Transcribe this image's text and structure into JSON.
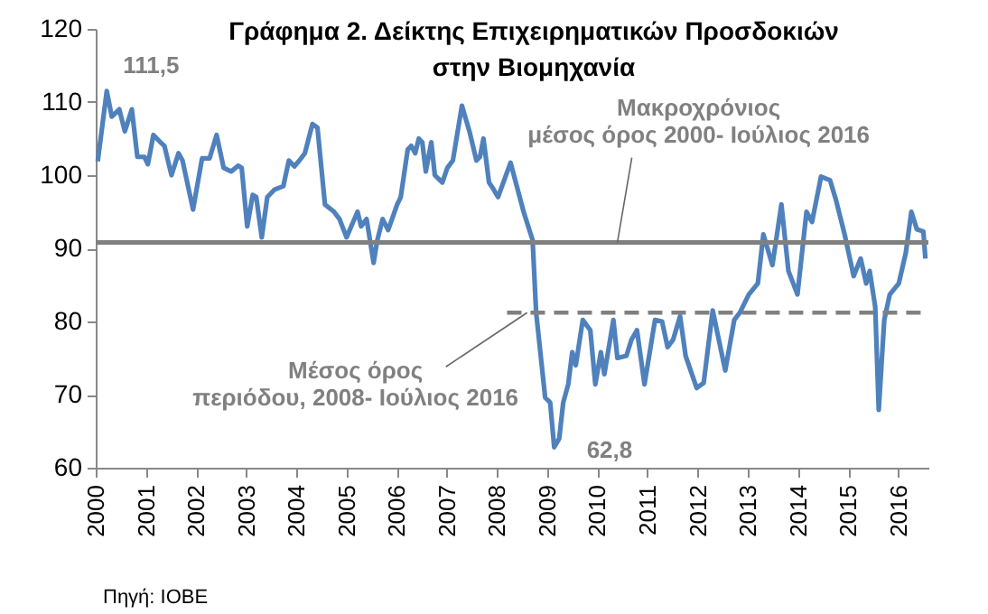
{
  "chart_data": {
    "type": "line",
    "title": "Γράφημα 2.  Δείκτης Επιχειρηματικών Προσδοκιών\nστην Βιομηχανία",
    "xlim": [
      2000,
      2016.6
    ],
    "xticks": [
      2000,
      2001,
      2002,
      2003,
      2004,
      2005,
      2006,
      2007,
      2008,
      2009,
      2010,
      2011,
      2012,
      2013,
      2014,
      2015,
      2016
    ],
    "ylim": [
      60,
      120
    ],
    "yticks": [
      60,
      70,
      80,
      90,
      100,
      110,
      120
    ],
    "grid": false,
    "marker": "none",
    "series": [
      {
        "color": "#4f81bd",
        "line_style": "solid",
        "x": [
          2000.04,
          2000.22,
          2000.32,
          2000.47,
          2000.58,
          2000.72,
          2000.83,
          2000.97,
          2001.04,
          2001.15,
          2001.29,
          2001.37,
          2001.51,
          2001.65,
          2001.73,
          2001.94,
          2002.12,
          2002.27,
          2002.41,
          2002.55,
          2002.7,
          2002.84,
          2002.91,
          2003.02,
          2003.13,
          2003.2,
          2003.31,
          2003.42,
          2003.56,
          2003.74,
          2003.85,
          2003.96,
          2004.06,
          2004.17,
          2004.32,
          2004.42,
          2004.57,
          2004.75,
          2004.86,
          2005.0,
          2005.22,
          2005.29,
          2005.4,
          2005.54,
          2005.61,
          2005.72,
          2005.83,
          2006.01,
          2006.08,
          2006.22,
          2006.29,
          2006.37,
          2006.44,
          2006.51,
          2006.58,
          2006.69,
          2006.76,
          2006.91,
          2007.01,
          2007.12,
          2007.3,
          2007.45,
          2007.59,
          2007.66,
          2007.73,
          2007.84,
          2007.91,
          2008.02,
          2008.27,
          2008.53,
          2008.71,
          2008.78,
          2008.96,
          2009.06,
          2009.14,
          2009.24,
          2009.32,
          2009.42,
          2009.5,
          2009.57,
          2009.71,
          2009.86,
          2009.96,
          2010.07,
          2010.14,
          2010.32,
          2010.4,
          2010.58,
          2010.68,
          2010.79,
          2010.94,
          2011.15,
          2011.29,
          2011.4,
          2011.51,
          2011.65,
          2011.76,
          2011.98,
          2012.12,
          2012.3,
          2012.55,
          2012.73,
          2012.84,
          2013.02,
          2013.2,
          2013.31,
          2013.49,
          2013.67,
          2013.81,
          2013.99,
          2014.17,
          2014.28,
          2014.46,
          2014.64,
          2014.75,
          2014.93,
          2015.11,
          2015.25,
          2015.36,
          2015.43,
          2015.54,
          2015.61,
          2015.72,
          2015.83,
          2016.01,
          2016.15,
          2016.26,
          2016.37,
          2016.5,
          2016.54
        ],
        "values": [
          101.9,
          111.5,
          108,
          109,
          106,
          109,
          102.5,
          102.5,
          101.5,
          105.5,
          104.5,
          104,
          100,
          103,
          102,
          95.3,
          102.3,
          102.3,
          105.5,
          101,
          100.5,
          101.3,
          101,
          93,
          97.3,
          97,
          91.5,
          97,
          98,
          98.5,
          102,
          101.2,
          102,
          103,
          107,
          106.5,
          96,
          95,
          94,
          91.5,
          95,
          93,
          94,
          88,
          91,
          94,
          92.5,
          96,
          97,
          103.5,
          104,
          103,
          105,
          104.5,
          100.5,
          104.5,
          100,
          99,
          101,
          102,
          109.5,
          106,
          102,
          102.5,
          105,
          99,
          98.3,
          97,
          101.7,
          95,
          91.1,
          81.2,
          69.6,
          68.9,
          62.8,
          64,
          68.9,
          71.4,
          75.8,
          74,
          80.2,
          78.8,
          71.4,
          75.8,
          72.8,
          80.2,
          75,
          75.3,
          77.5,
          78.8,
          71.4,
          80.2,
          80,
          76.5,
          77.5,
          80.7,
          75.3,
          70.9,
          71.6,
          81.5,
          73.3,
          80.2,
          81.2,
          83.7,
          85.2,
          91.9,
          87.7,
          96,
          86.9,
          83.7,
          95,
          93.6,
          99.8,
          99.3,
          96.8,
          91.9,
          86.2,
          88.6,
          85.2,
          86.9,
          82,
          67.9,
          80.2,
          83.7,
          85.2,
          89.4,
          95,
          92.6,
          92.3,
          88.6
        ]
      },
      {
        "color": "#808080",
        "line_style": "dashed",
        "x": [
          2008.2,
          2016.6
        ],
        "values": [
          81.2,
          81.2
        ]
      }
    ],
    "ref_lines": [
      {
        "axis": "y",
        "value": 90.8,
        "color": "#808080",
        "line_style": "solid"
      }
    ],
    "annotations": [
      {
        "text": "111,5",
        "x": 2000.22,
        "y": 111.5
      },
      {
        "text": "62,8",
        "x": 2009.14,
        "y": 62.8
      },
      {
        "text": "Μακροχρόνιος\nμέσος όρος 2000- Ιούλιος 2016",
        "x": 2010.4,
        "y": 90.8
      },
      {
        "text": "Μέσος όρος\nπεριόδου, 2008- Ιούλιος 2016",
        "x": 2008.6,
        "y": 81.2
      },
      "Πηγή: ΙΟΒΕ"
    ]
  }
}
